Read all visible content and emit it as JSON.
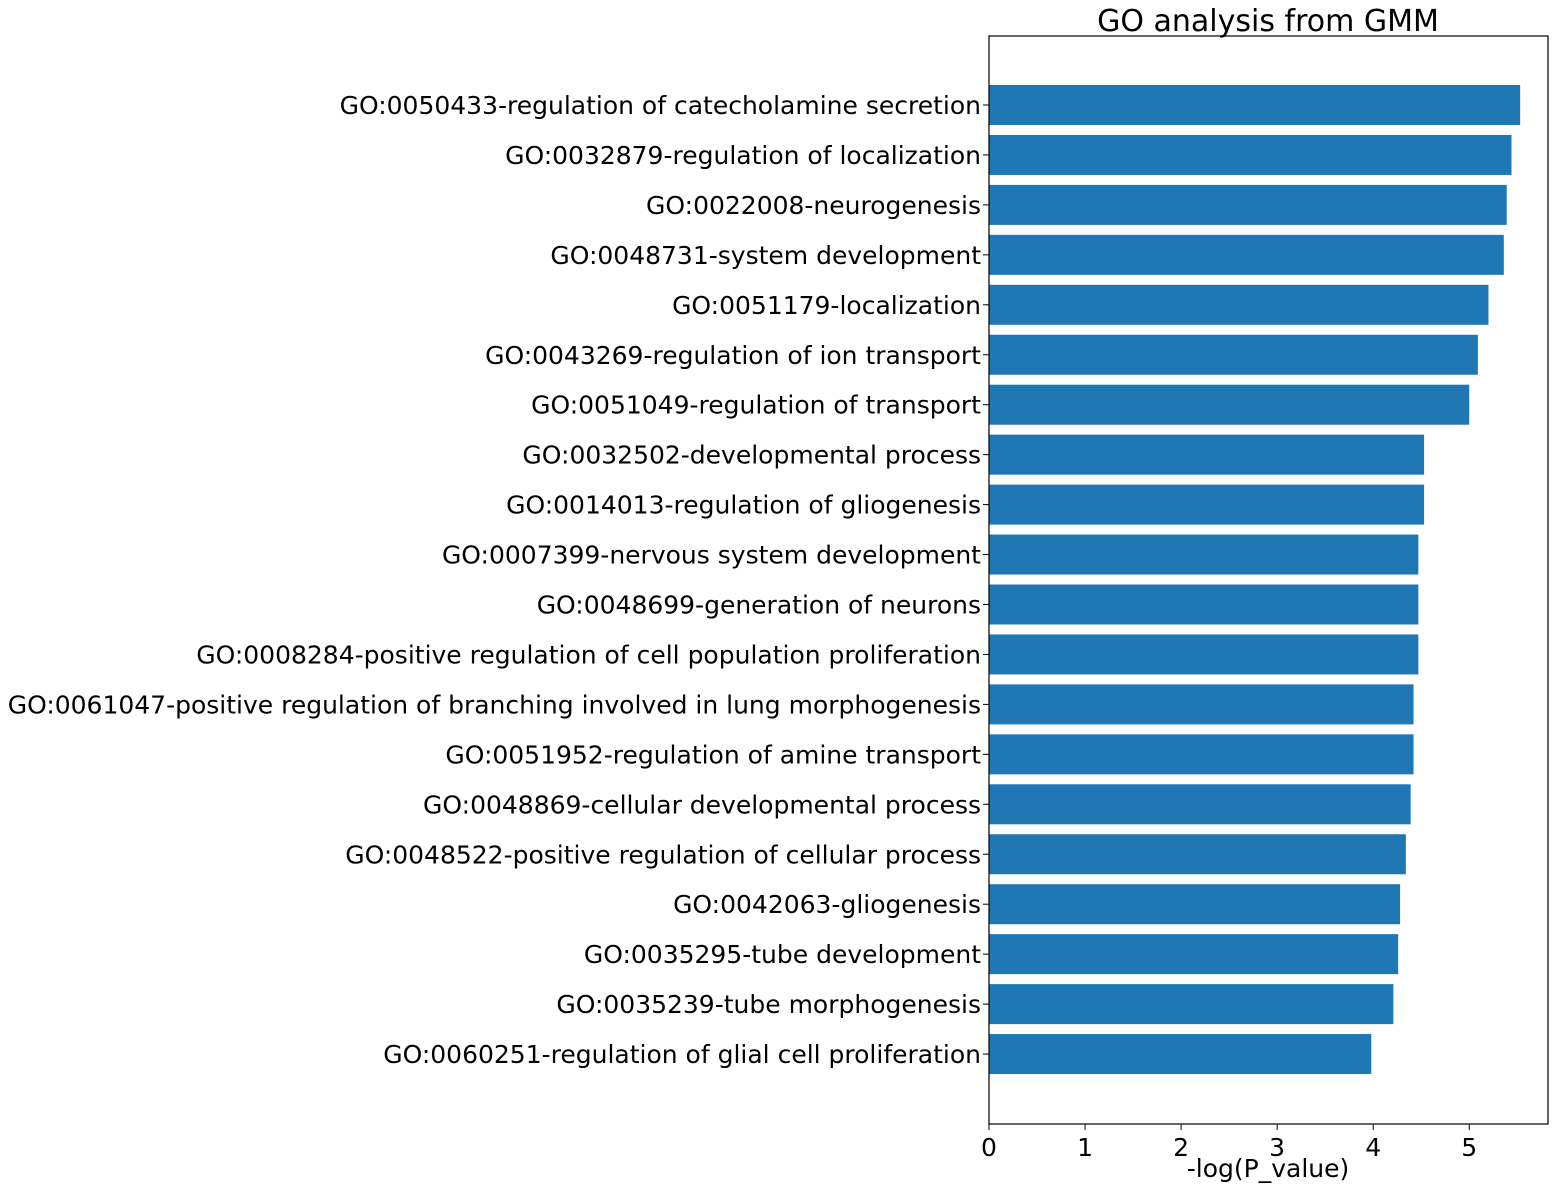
{
  "chart_data": {
    "type": "bar",
    "orientation": "horizontal",
    "title": "GO analysis from GMM",
    "xlabel": "-log(P_value)",
    "ylabel": "",
    "xlim": [
      0,
      5.82
    ],
    "xticks": [
      0,
      1,
      2,
      3,
      4,
      5
    ],
    "grid": false,
    "bar_color": "#1f77b4",
    "categories": [
      "GO:0050433-regulation of catecholamine secretion",
      "GO:0032879-regulation of localization",
      "GO:0022008-neurogenesis",
      "GO:0048731-system development",
      "GO:0051179-localization",
      "GO:0043269-regulation of ion transport",
      "GO:0051049-regulation of transport",
      "GO:0032502-developmental process",
      "GO:0014013-regulation of gliogenesis",
      "GO:0007399-nervous system development",
      "GO:0048699-generation of neurons",
      "GO:0008284-positive regulation of cell population proliferation",
      "GO:0061047-positive regulation of branching involved in lung morphogenesis",
      "GO:0051952-regulation of amine transport",
      "GO:0048869-cellular developmental process",
      "GO:0048522-positive regulation of cellular process",
      "GO:0042063-gliogenesis",
      "GO:0035295-tube development",
      "GO:0035239-tube morphogenesis",
      "GO:0060251-regulation of glial cell proliferation"
    ],
    "values": [
      5.53,
      5.44,
      5.39,
      5.36,
      5.2,
      5.09,
      5.0,
      4.53,
      4.53,
      4.47,
      4.47,
      4.47,
      4.42,
      4.42,
      4.39,
      4.34,
      4.28,
      4.26,
      4.21,
      3.98
    ]
  }
}
